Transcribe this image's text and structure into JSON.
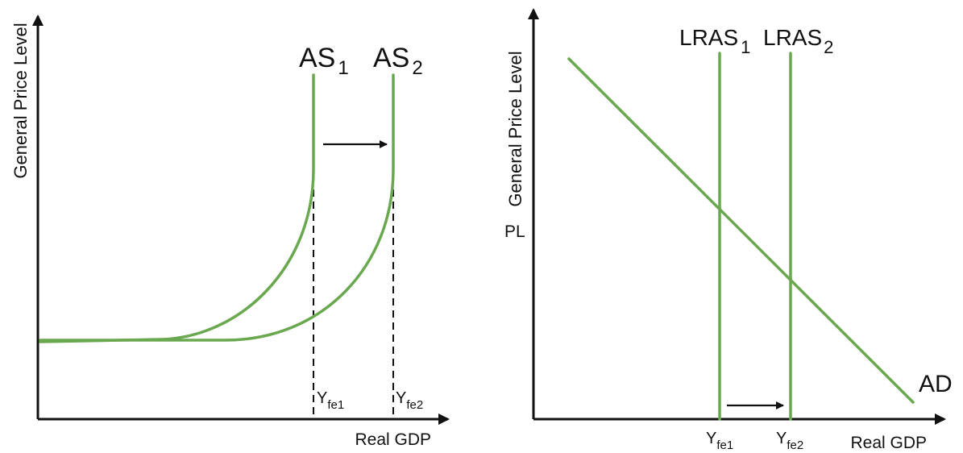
{
  "left_panel": {
    "y_axis_label": "General Price Level",
    "x_axis_label": "Real GDP",
    "curves": [
      {
        "name": "AS",
        "subscript": "1",
        "color": "#6aa84f"
      },
      {
        "name": "AS",
        "subscript": "2",
        "color": "#6aa84f"
      }
    ],
    "x_ticks": [
      {
        "main": "Y",
        "sub": "fe1"
      },
      {
        "main": "Y",
        "sub": "fe2"
      }
    ]
  },
  "right_panel": {
    "y_axis_label": "General Price Level",
    "y_tick": "PL",
    "x_axis_label": "Real GDP",
    "lines": [
      {
        "name": "LRAS",
        "subscript": "1",
        "color": "#6aa84f"
      },
      {
        "name": "LRAS",
        "subscript": "2",
        "color": "#6aa84f"
      },
      {
        "name": "AD",
        "color": "#6aa84f"
      }
    ],
    "x_ticks": [
      {
        "main": "Y",
        "sub": "fe1"
      },
      {
        "main": "Y",
        "sub": "fe2"
      }
    ]
  }
}
